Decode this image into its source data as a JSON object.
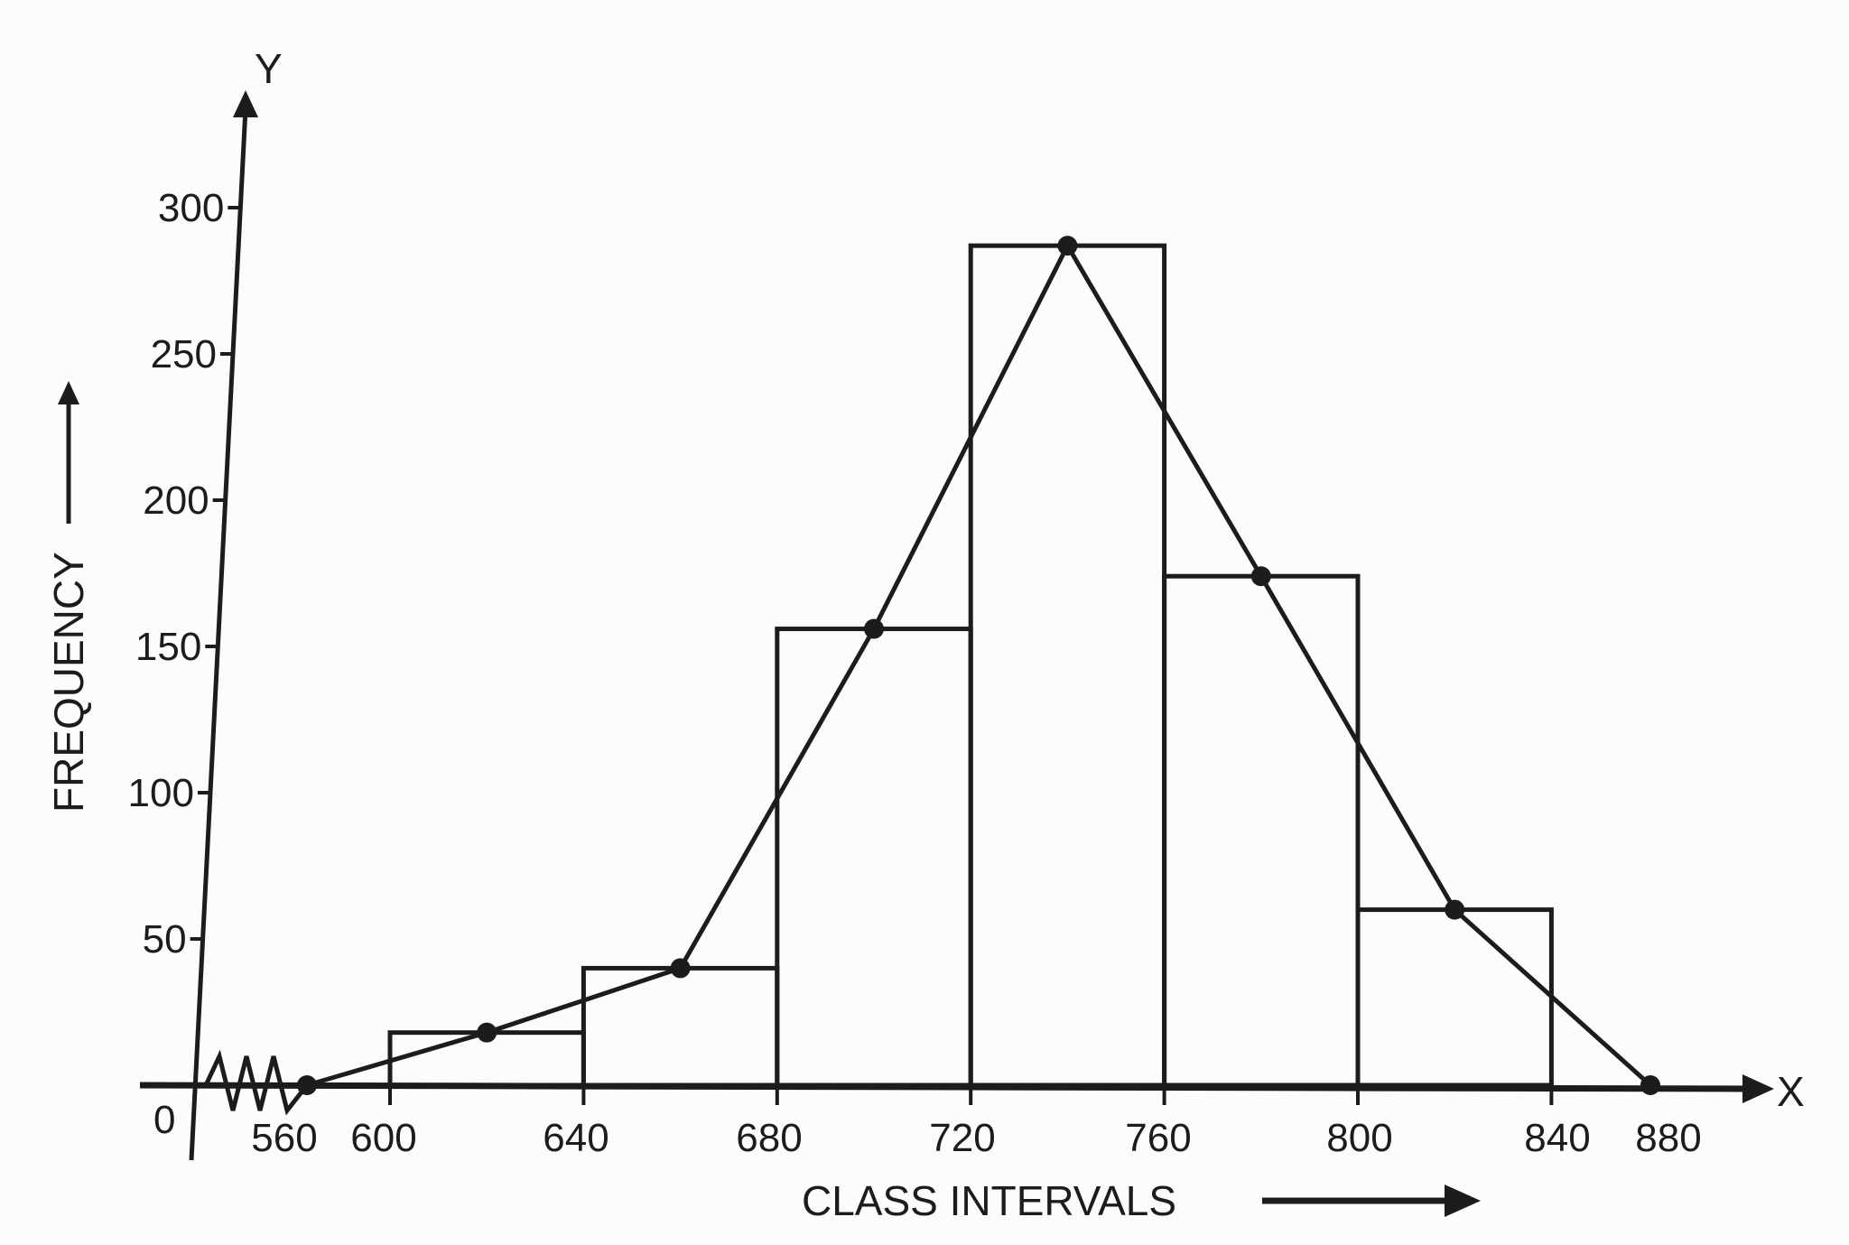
{
  "chart_data": {
    "type": "bar",
    "subtype": "histogram_with_frequency_polygon",
    "title": "",
    "xlabel": "CLASS INTERVALS",
    "ylabel": "FREQUENCY",
    "x_axis_letter": "X",
    "y_axis_letter": "Y",
    "origin_label": "0",
    "x_ticks": [
      "560",
      "600",
      "640",
      "680",
      "720",
      "760",
      "800",
      "840",
      "880"
    ],
    "y_ticks": [
      "50",
      "100",
      "150",
      "200",
      "250",
      "300"
    ],
    "ylim": [
      0,
      300
    ],
    "categories": [
      "600-640",
      "640-680",
      "680-720",
      "720-760",
      "760-800",
      "800-840"
    ],
    "values": [
      18,
      40,
      156,
      287,
      174,
      60
    ],
    "frequency_polygon": {
      "x": [
        580,
        620,
        660,
        700,
        740,
        780,
        820,
        860
      ],
      "y": [
        0,
        18,
        40,
        156,
        287,
        174,
        60,
        0
      ]
    },
    "axis_break": true,
    "grid": false,
    "legend": null,
    "colors": {
      "ink": "#1c1c1c",
      "paper": "#fdfcfb"
    }
  }
}
